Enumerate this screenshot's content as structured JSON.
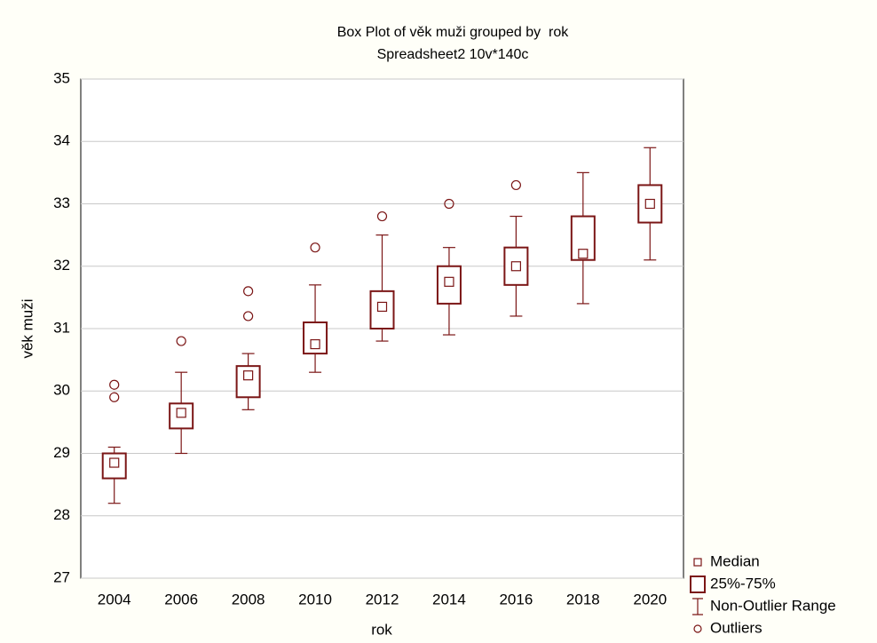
{
  "chart_data": {
    "type": "box",
    "title": "Box Plot of věk muži grouped by  rok",
    "subtitle": "Spreadsheet2 10v*140c",
    "x_label": "rok",
    "y_label": "věk muži",
    "color": "#7b1616",
    "categories": [
      "2004",
      "2006",
      "2008",
      "2010",
      "2012",
      "2014",
      "2016",
      "2018",
      "2020"
    ],
    "median": [
      28.85,
      29.65,
      30.25,
      30.75,
      31.35,
      31.75,
      32.0,
      32.2,
      33.0
    ],
    "q1": [
      28.6,
      29.4,
      29.9,
      30.6,
      31.0,
      31.4,
      31.7,
      32.1,
      32.7
    ],
    "q3": [
      29.0,
      29.8,
      30.4,
      31.1,
      31.6,
      32.0,
      32.3,
      32.8,
      33.3
    ],
    "whisker_low": [
      28.2,
      29.0,
      29.7,
      30.3,
      30.8,
      30.9,
      31.2,
      31.4,
      32.1
    ],
    "whisker_high": [
      29.1,
      30.3,
      30.6,
      31.7,
      32.5,
      32.3,
      32.8,
      33.5,
      33.9
    ],
    "outliers": [
      [
        29.9,
        30.1
      ],
      [
        30.8
      ],
      [
        31.2,
        31.6
      ],
      [
        32.3
      ],
      [
        32.8
      ],
      [
        33.0
      ],
      [
        33.3
      ],
      [],
      []
    ],
    "ylim": [
      27,
      35
    ],
    "yticks": [
      27,
      28,
      29,
      30,
      31,
      32,
      33,
      34,
      35
    ],
    "grid": true,
    "legend": {
      "median": "Median",
      "box": "25%-75%",
      "range": "Non-Outlier Range",
      "outliers": "Outliers"
    }
  }
}
